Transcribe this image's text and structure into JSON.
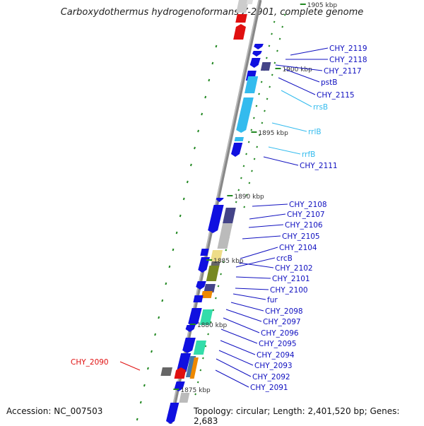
{
  "title": "Carboxydothermus hydrogenoformans Z-2901, complete genome",
  "accession": "Accession: NC_007503",
  "topology": "Topology: circular; Length: 2,401,520 bp; Genes: 2,683",
  "colors": {
    "cds_forward": "#1010e0",
    "highlight": "#e01010",
    "rrna": "#33bbee",
    "tick": "#228822",
    "backbone": "#888888"
  },
  "kbp_markers": [
    "1905 kbp",
    "1900 kbp",
    "1895 kbp",
    "1890 kbp",
    "1885 kbp",
    "1880 kbp",
    "1875 kbp"
  ],
  "gene_labels": [
    {
      "text": "CHY_2119",
      "kind": "cds"
    },
    {
      "text": "CHY_2118",
      "kind": "cds"
    },
    {
      "text": "CHY_2117",
      "kind": "cds"
    },
    {
      "text": "pstB",
      "kind": "cds"
    },
    {
      "text": "CHY_2115",
      "kind": "cds"
    },
    {
      "text": "rrsB",
      "kind": "rrna"
    },
    {
      "text": "rrlB",
      "kind": "rrna"
    },
    {
      "text": "rrfB",
      "kind": "rrna"
    },
    {
      "text": "CHY_2111",
      "kind": "cds"
    },
    {
      "text": "CHY_2108",
      "kind": "cds"
    },
    {
      "text": "CHY_2107",
      "kind": "cds"
    },
    {
      "text": "CHY_2106",
      "kind": "cds"
    },
    {
      "text": "CHY_2105",
      "kind": "cds"
    },
    {
      "text": "CHY_2104",
      "kind": "cds"
    },
    {
      "text": "crcB",
      "kind": "cds"
    },
    {
      "text": "CHY_2102",
      "kind": "cds"
    },
    {
      "text": "CHY_2101",
      "kind": "cds"
    },
    {
      "text": "CHY_2100",
      "kind": "cds"
    },
    {
      "text": "fur",
      "kind": "cds"
    },
    {
      "text": "CHY_2098",
      "kind": "cds"
    },
    {
      "text": "CHY_2097",
      "kind": "cds"
    },
    {
      "text": "CHY_2096",
      "kind": "cds"
    },
    {
      "text": "CHY_2095",
      "kind": "cds"
    },
    {
      "text": "CHY_2094",
      "kind": "cds"
    },
    {
      "text": "CHY_2093",
      "kind": "cds"
    },
    {
      "text": "CHY_2092",
      "kind": "cds"
    },
    {
      "text": "CHY_2091",
      "kind": "cds"
    },
    {
      "text": "CHY_2090",
      "kind": "highlight"
    }
  ]
}
